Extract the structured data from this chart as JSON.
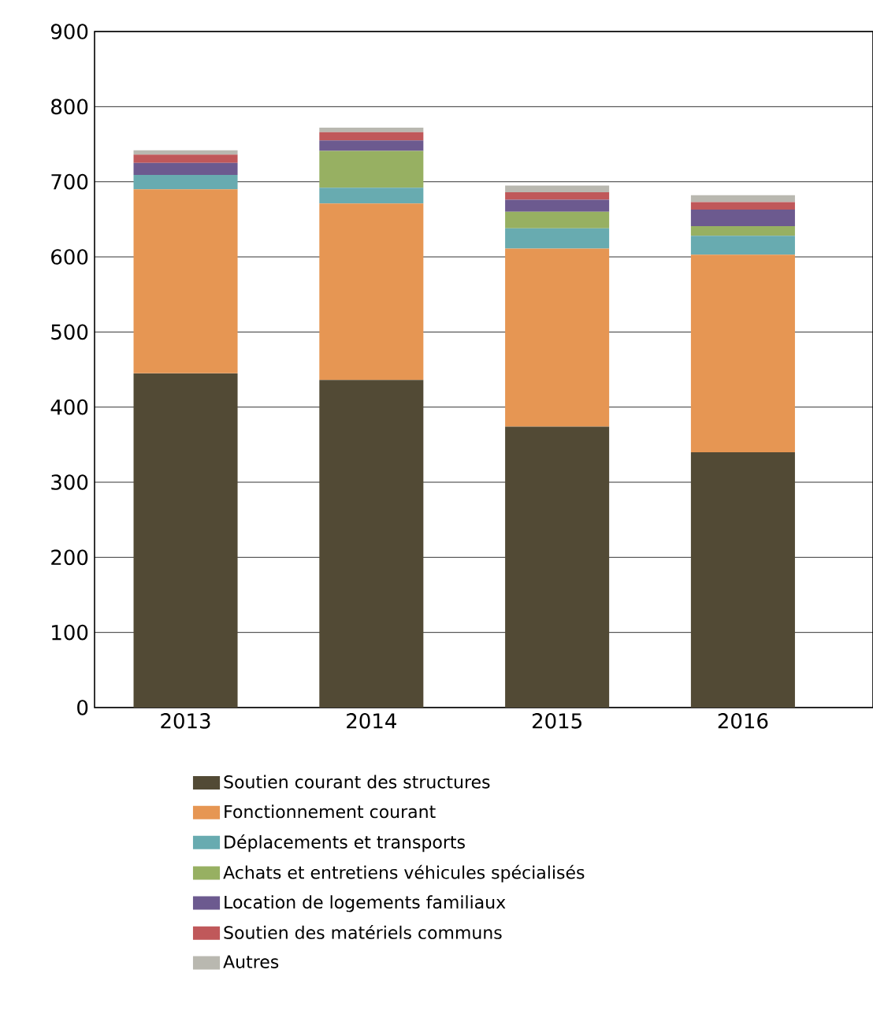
{
  "chart_data": {
    "type": "bar",
    "stacked": true,
    "categories": [
      "2013",
      "2014",
      "2015",
      "2016"
    ],
    "series": [
      {
        "name": "Soutien courant des structures",
        "color": "#524a35",
        "values": [
          445,
          436,
          374,
          340
        ]
      },
      {
        "name": "Fonctionnement courant",
        "color": "#e69653",
        "values": [
          245,
          235,
          237,
          263
        ]
      },
      {
        "name": "Déplacements et transports",
        "color": "#68abb0",
        "values": [
          19,
          21,
          27,
          25
        ]
      },
      {
        "name": "Achats et entretiens véhicules spécialisés",
        "color": "#97b062",
        "values": [
          0,
          49,
          22,
          13
        ]
      },
      {
        "name": "Location de logements familiaux",
        "color": "#6c5a8f",
        "values": [
          16,
          14,
          16,
          22
        ]
      },
      {
        "name": "Soutien des matériels communs",
        "color": "#c0585a",
        "values": [
          11,
          11,
          10,
          10
        ]
      },
      {
        "name": "Autres",
        "color": "#b9b8b0",
        "values": [
          6,
          6,
          9,
          9
        ]
      }
    ],
    "ylim": [
      0,
      900
    ],
    "yticks": [
      0,
      100,
      200,
      300,
      400,
      500,
      600,
      700,
      800,
      900
    ],
    "grid": "y",
    "legend": "bottom"
  }
}
